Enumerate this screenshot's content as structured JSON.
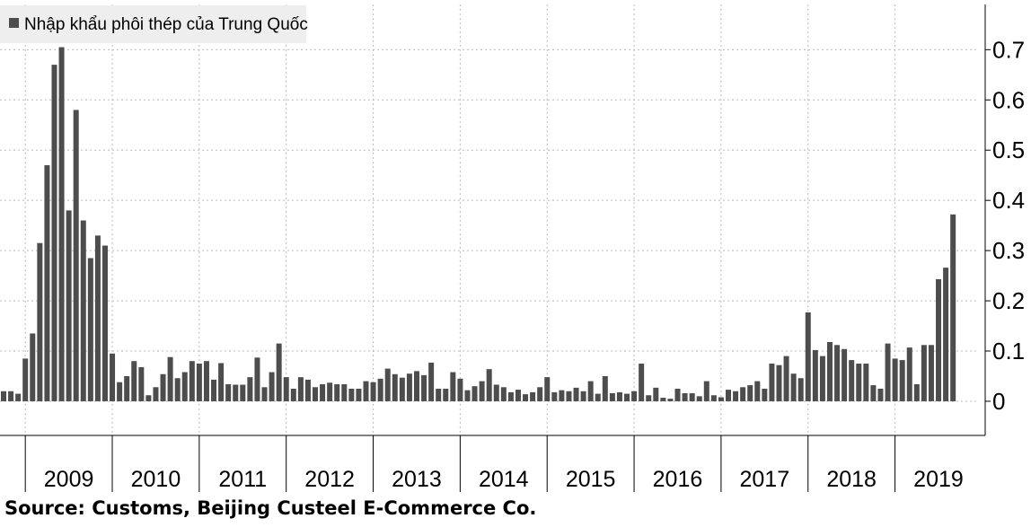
{
  "chart_data": {
    "type": "bar",
    "categories": [
      null,
      null,
      null,
      null,
      null,
      null,
      null,
      null,
      null,
      null,
      null,
      null,
      null,
      null,
      null,
      null,
      null,
      null,
      null,
      null,
      null,
      null,
      null,
      null,
      null,
      null,
      null,
      null,
      null,
      null,
      null,
      null,
      null,
      null,
      null,
      null,
      null,
      null,
      null,
      null,
      null,
      null,
      null,
      null,
      null,
      null,
      null,
      null,
      null,
      null,
      null,
      null,
      null,
      null,
      null,
      null,
      null,
      null,
      null,
      null,
      null,
      null,
      null,
      null,
      null,
      null,
      null,
      null,
      null,
      null,
      null,
      null,
      null,
      null,
      null,
      null,
      null,
      null,
      null,
      null,
      null,
      null,
      null,
      null,
      null,
      null,
      null,
      null,
      null,
      null,
      null,
      null,
      null,
      null,
      null,
      null,
      null,
      null,
      null,
      null,
      null,
      null,
      null,
      null,
      null,
      null,
      null,
      null,
      null,
      null,
      null,
      null,
      null,
      null,
      null,
      null,
      null,
      null,
      null,
      null,
      null,
      null,
      null,
      null,
      null,
      null,
      null,
      null,
      null,
      null,
      null,
      null
    ],
    "series": [
      {
        "name": "Nhập khẩu phôi thép của Trung Quốc",
        "color": "#4d4d4d",
        "values": [
          0.02,
          0.02,
          0.015,
          0.085,
          0.135,
          0.315,
          0.47,
          0.67,
          0.705,
          0.38,
          0.58,
          0.36,
          0.285,
          0.33,
          0.31,
          0.095,
          0.038,
          0.05,
          0.08,
          0.068,
          0.012,
          0.028,
          0.054,
          0.088,
          0.046,
          0.058,
          0.08,
          0.075,
          0.08,
          0.043,
          0.076,
          0.034,
          0.033,
          0.033,
          0.048,
          0.087,
          0.028,
          0.058,
          0.115,
          0.048,
          0.025,
          0.048,
          0.043,
          0.028,
          0.034,
          0.037,
          0.034,
          0.034,
          0.025,
          0.025,
          0.04,
          0.038,
          0.045,
          0.065,
          0.054,
          0.047,
          0.055,
          0.06,
          0.052,
          0.077,
          0.025,
          0.025,
          0.058,
          0.045,
          0.022,
          0.03,
          0.04,
          0.064,
          0.033,
          0.028,
          0.018,
          0.023,
          0.014,
          0.018,
          0.028,
          0.048,
          0.018,
          0.022,
          0.02,
          0.027,
          0.02,
          0.04,
          0.015,
          0.05,
          0.016,
          0.018,
          0.015,
          0.02,
          0.075,
          0.012,
          0.027,
          0.007,
          0.005,
          0.025,
          0.016,
          0.016,
          0.01,
          0.04,
          0.012,
          0.008,
          0.023,
          0.02,
          0.028,
          0.032,
          0.04,
          0.025,
          0.075,
          0.072,
          0.09,
          0.055,
          0.046,
          0.177,
          0.102,
          0.09,
          0.118,
          0.112,
          0.104,
          0.082,
          0.075,
          0.075,
          0.032,
          0.025,
          0.115,
          0.085,
          0.082,
          0.107,
          0.034,
          0.112,
          0.112,
          0.243,
          0.266,
          0.372
        ]
      }
    ],
    "year_labels": [
      "2009",
      "2010",
      "2011",
      "2012",
      "2013",
      "2014",
      "2015",
      "2016",
      "2017",
      "2018",
      "2019"
    ],
    "ylim": [
      -0.068,
      0.79
    ],
    "yticks": [
      0,
      0.1,
      0.2,
      0.3,
      0.4,
      0.5,
      0.6,
      0.7
    ],
    "grid": true,
    "source": "Source: Customs, Beijing Custeel E-Commerce Co."
  }
}
